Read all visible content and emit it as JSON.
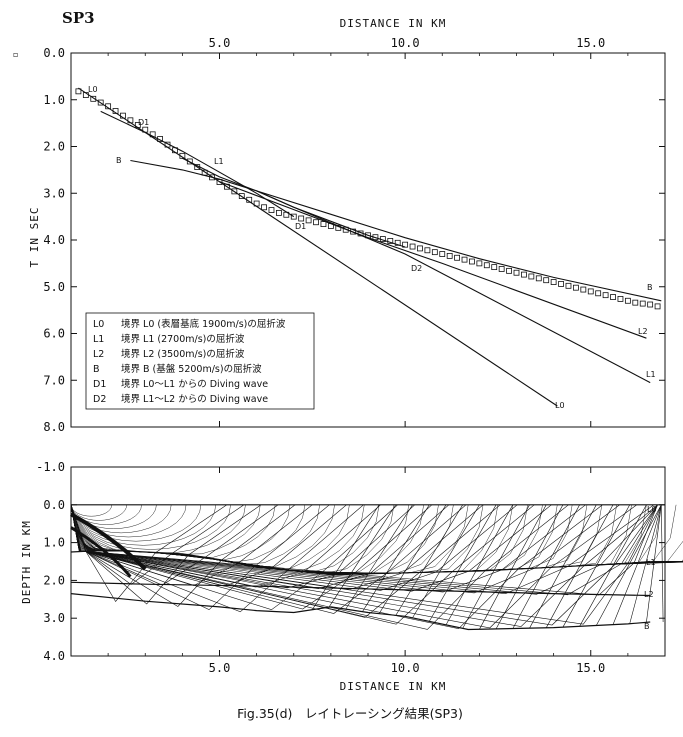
{
  "station_label": "SP3",
  "caption": "Fig.35(d)　レイトレーシング結果(SP3)",
  "chart_data": [
    {
      "type": "line",
      "xlabel": "DISTANCE IN KM",
      "ylabel": "T IN SEC",
      "xlim": [
        1.0,
        17.0
      ],
      "ylim": [
        0.0,
        8.0
      ],
      "y_inverted": true,
      "x_ticks": [
        "5.0",
        "10.0",
        "15.0"
      ],
      "y_ticks": [
        "0.0",
        "1.0",
        "2.0",
        "3.0",
        "4.0",
        "5.0",
        "6.0",
        "7.0",
        "8.0"
      ],
      "observed_marker": "▫",
      "observed_x": [
        1.2,
        1.4,
        1.6,
        1.8,
        2.0,
        2.2,
        2.4,
        2.6,
        2.8,
        3.0,
        3.2,
        3.4,
        3.6,
        3.8,
        4.0,
        4.2,
        4.4,
        4.6,
        4.8,
        5.0,
        5.2,
        5.4,
        5.6,
        5.8,
        6.0,
        6.2,
        6.4,
        6.6,
        6.8,
        7.0,
        7.2,
        7.4,
        7.6,
        7.8,
        8.0,
        8.2,
        8.4,
        8.6,
        8.8,
        9.0,
        9.2,
        9.4,
        9.6,
        9.8,
        10.0,
        10.2,
        10.4,
        10.6,
        10.8,
        11.0,
        11.2,
        11.4,
        11.6,
        11.8,
        12.0,
        12.2,
        12.4,
        12.6,
        12.8,
        13.0,
        13.2,
        13.4,
        13.6,
        13.8,
        14.0,
        14.2,
        14.4,
        14.6,
        14.8,
        15.0,
        15.2,
        15.4,
        15.6,
        15.8,
        16.0,
        16.2,
        16.4,
        16.6,
        16.8
      ],
      "observed_t": [
        0.82,
        0.9,
        0.98,
        1.06,
        1.14,
        1.24,
        1.34,
        1.44,
        1.54,
        1.64,
        1.74,
        1.84,
        1.96,
        2.08,
        2.2,
        2.32,
        2.44,
        2.56,
        2.66,
        2.76,
        2.86,
        2.96,
        3.06,
        3.14,
        3.22,
        3.3,
        3.36,
        3.42,
        3.46,
        3.5,
        3.54,
        3.58,
        3.62,
        3.66,
        3.7,
        3.74,
        3.78,
        3.82,
        3.86,
        3.9,
        3.94,
        3.98,
        4.02,
        4.06,
        4.1,
        4.14,
        4.18,
        4.22,
        4.26,
        4.3,
        4.34,
        4.38,
        4.42,
        4.46,
        4.5,
        4.54,
        4.58,
        4.62,
        4.66,
        4.7,
        4.74,
        4.78,
        4.82,
        4.86,
        4.9,
        4.94,
        4.98,
        5.02,
        5.06,
        5.1,
        5.14,
        5.18,
        5.22,
        5.26,
        5.3,
        5.34,
        5.36,
        5.38,
        5.42
      ],
      "series": [
        {
          "name": "L0",
          "x": [
            1.2,
            14.1
          ],
          "t": [
            0.75,
            7.55
          ]
        },
        {
          "name": "L1",
          "x": [
            4.0,
            5.0,
            6.0,
            7.0,
            10.0,
            16.6
          ],
          "t": [
            2.25,
            2.65,
            2.95,
            3.3,
            4.3,
            7.05
          ]
        },
        {
          "name": "L2",
          "x": [
            5.0,
            7.0,
            9.0,
            11.0,
            16.5
          ],
          "t": [
            2.75,
            3.35,
            3.95,
            4.5,
            6.1
          ]
        },
        {
          "name": "B",
          "x": [
            2.6,
            4.0,
            5.0,
            6.0,
            8.0,
            10.0,
            12.0,
            14.0,
            16.9
          ],
          "t": [
            2.3,
            2.5,
            2.7,
            2.95,
            3.45,
            3.95,
            4.4,
            4.8,
            5.3
          ]
        },
        {
          "name": "D1",
          "x": [
            1.8,
            3.0,
            4.0,
            5.0,
            6.0,
            7.0
          ],
          "t": [
            1.25,
            1.7,
            2.1,
            2.55,
            3.0,
            3.5
          ]
        },
        {
          "name": "D2",
          "x": [
            6.0,
            7.0,
            8.0,
            9.0,
            10.0
          ],
          "t": [
            2.95,
            3.3,
            3.6,
            3.9,
            4.15
          ]
        }
      ],
      "curve_labels": [
        "L0",
        "D1",
        "B",
        "L1",
        "D1",
        "D2",
        "B",
        "L2",
        "L1",
        "L0"
      ],
      "legend": [
        {
          "key": "L0",
          "text": "境界 L0 (表層基底 1900m/s)の屈折波"
        },
        {
          "key": "L1",
          "text": "境界 L1 (2700m/s)の屈折波"
        },
        {
          "key": "L2",
          "text": "境界 L2 (3500m/s)の屈折波"
        },
        {
          "key": "B",
          "text": "境界 B (基盤 5200m/s)の屈折波"
        },
        {
          "key": "D1",
          "text": "境界 L0～L1 からの Diving wave"
        },
        {
          "key": "D2",
          "text": "境界 L1～L2 からの Diving wave"
        }
      ]
    },
    {
      "type": "line",
      "xlabel": "DISTANCE IN KM",
      "ylabel": "DEPTH IN KM",
      "xlim": [
        1.0,
        17.0
      ],
      "ylim": [
        -1.0,
        4.0
      ],
      "y_inverted": true,
      "x_ticks": [
        "5.0",
        "10.0",
        "15.0"
      ],
      "y_ticks": [
        "-1.0",
        "0.0",
        "1.0",
        "2.0",
        "3.0",
        "4.0"
      ],
      "boundaries": [
        {
          "name": "L0",
          "x": [
            1.0,
            17.0
          ],
          "depth": [
            0.0,
            0.0
          ]
        },
        {
          "name": "L1",
          "x": [
            1.0,
            2.0,
            3.0,
            4.0,
            5.0,
            6.0,
            8.0,
            10.0,
            12.0,
            14.0,
            16.0,
            16.6
          ],
          "depth": [
            1.25,
            1.2,
            1.25,
            1.3,
            1.45,
            1.65,
            1.85,
            1.8,
            1.75,
            1.65,
            1.55,
            1.5
          ]
        },
        {
          "name": "L2",
          "x": [
            1.0,
            3.0,
            6.0,
            10.0,
            14.0,
            16.6
          ],
          "depth": [
            2.05,
            2.1,
            2.15,
            2.25,
            2.35,
            2.4
          ]
        },
        {
          "name": "B",
          "x": [
            1.0,
            3.0,
            5.0,
            6.0,
            7.0,
            8.0,
            9.0,
            10.0,
            11.7,
            14.0,
            16.0,
            16.6
          ],
          "depth": [
            2.35,
            2.55,
            2.7,
            2.8,
            2.85,
            2.7,
            2.85,
            2.95,
            3.3,
            3.25,
            3.15,
            3.1
          ]
        }
      ]
    }
  ]
}
